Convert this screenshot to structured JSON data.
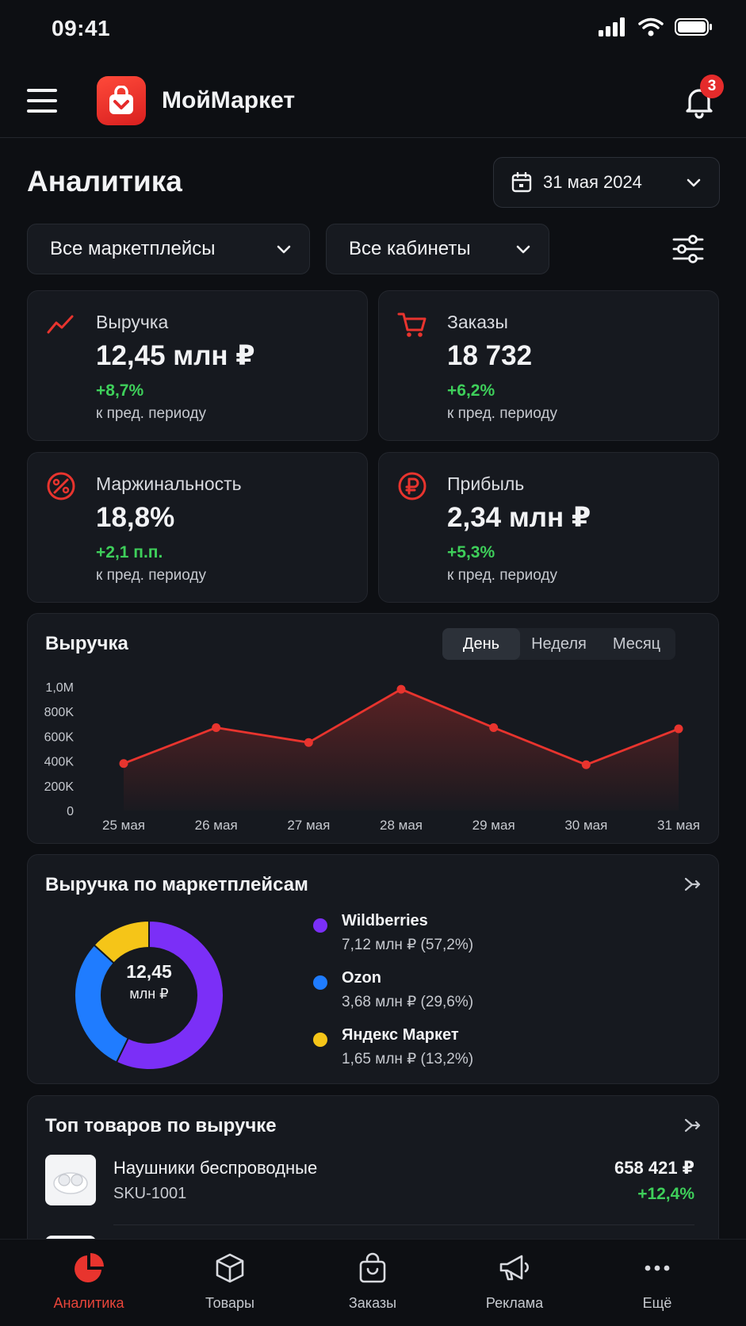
{
  "status_bar": {
    "time": "09:41"
  },
  "app": {
    "name": "МойМаркет",
    "notification_count": "3"
  },
  "page": {
    "title": "Аналитика",
    "date": "31 мая 2024"
  },
  "filters": {
    "marketplace": "Все маркетплейсы",
    "account": "Все кабинеты"
  },
  "kpis": [
    {
      "label": "Выручка",
      "value": "12,45 млн ₽",
      "delta": "+8,7%",
      "sub": "к пред. периоду",
      "icon": "trend-up-icon"
    },
    {
      "label": "Заказы",
      "value": "18 732",
      "delta": "+6,2%",
      "sub": "к пред. периоду",
      "icon": "cart-icon"
    },
    {
      "label": "Маржинальность",
      "value": "18,8%",
      "delta": "+2,1 п.п.",
      "sub": "к пред. периоду",
      "icon": "margin-gauge-icon"
    },
    {
      "label": "Прибыль",
      "value": "2,34 млн ₽",
      "delta": "+5,3%",
      "sub": "к пред. периоду",
      "icon": "ruble-circle-icon"
    }
  ],
  "revenue_chart": {
    "title": "Выручка",
    "periods": [
      "День",
      "Неделя",
      "Месяц"
    ],
    "active_period": "День"
  },
  "chart_data": {
    "type": "area",
    "title": "Выручка",
    "categories": [
      "25 мая",
      "26 мая",
      "27 мая",
      "28 мая",
      "29 мая",
      "30 мая",
      "31 мая"
    ],
    "values": [
      380000,
      670000,
      550000,
      980000,
      670000,
      370000,
      660000
    ],
    "ylim": [
      0,
      1000000
    ],
    "y_ticks": [
      "0",
      "200K",
      "400K",
      "600K",
      "800K",
      "1,0M"
    ],
    "y_tick_values": [
      0,
      200000,
      400000,
      600000,
      800000,
      1000000
    ],
    "color": "#e8342e",
    "grid": false
  },
  "marketplaces": {
    "title": "Выручка по маркетплейсам",
    "total_value": "12,45",
    "total_unit": "млн ₽",
    "items": [
      {
        "name": "Wildberries",
        "value": "7,12 млн ₽ (57,2%)",
        "share": 57.2,
        "color": "#7b2ff7"
      },
      {
        "name": "Ozon",
        "value": "3,68 млн ₽ (29,6%)",
        "share": 29.6,
        "color": "#1f7cff"
      },
      {
        "name": "Яндекс Маркет",
        "value": "1,65 млн ₽ (13,2%)",
        "share": 13.2,
        "color": "#f5c518"
      }
    ]
  },
  "top_products": {
    "title": "Топ товаров по выручке",
    "items": [
      {
        "name": "Наушники беспроводные",
        "sku": "SKU-1001",
        "revenue": "658 421 ₽",
        "delta": "+12,4%"
      }
    ]
  },
  "tabs": [
    {
      "label": "Аналитика",
      "icon": "pie-chart-icon",
      "active": true
    },
    {
      "label": "Товары",
      "icon": "box-icon",
      "active": false
    },
    {
      "label": "Заказы",
      "icon": "bag-icon",
      "active": false
    },
    {
      "label": "Реклама",
      "icon": "megaphone-icon",
      "active": false
    },
    {
      "label": "Ещё",
      "icon": "more-icon",
      "active": false
    }
  ],
  "colors": {
    "accent": "#e8342e",
    "positive": "#3ecf5a",
    "background": "#0d0f13",
    "card": "#16191f"
  }
}
